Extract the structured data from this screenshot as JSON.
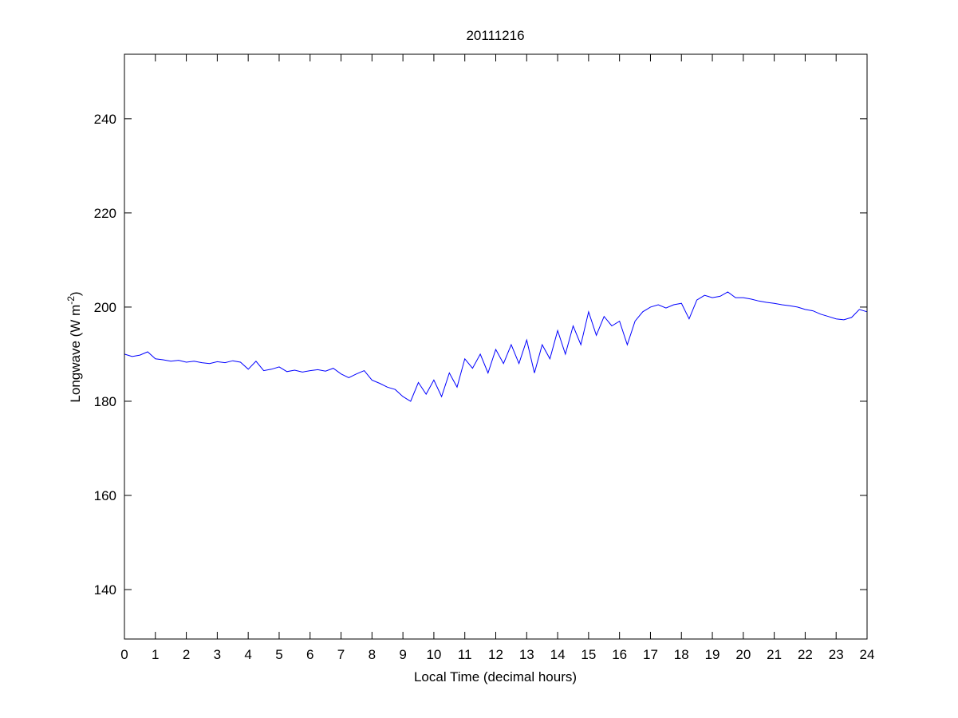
{
  "chart_data": {
    "type": "line",
    "title": "20111216",
    "xlabel": "Local Time (decimal hours)",
    "ylabel": {
      "main": "Longwave (W m",
      "sup": "-2",
      "end": ")"
    },
    "xlim": [
      0,
      24
    ],
    "ylim": [
      129.5,
      253.7
    ],
    "xticks": [
      0,
      1,
      2,
      3,
      4,
      5,
      6,
      7,
      8,
      9,
      10,
      11,
      12,
      13,
      14,
      15,
      16,
      17,
      18,
      19,
      20,
      21,
      22,
      23,
      24
    ],
    "yticks": [
      140,
      160,
      180,
      200,
      220,
      240
    ],
    "grid": false,
    "series": [
      {
        "name": "Longwave",
        "color": "#0000ff",
        "x": [
          0,
          0.25,
          0.5,
          0.75,
          1,
          1.25,
          1.5,
          1.75,
          2,
          2.25,
          2.5,
          2.75,
          3,
          3.25,
          3.5,
          3.75,
          4,
          4.25,
          4.5,
          4.75,
          5,
          5.25,
          5.5,
          5.75,
          6,
          6.25,
          6.5,
          6.75,
          7,
          7.25,
          7.5,
          7.75,
          8,
          8.25,
          8.5,
          8.75,
          9,
          9.25,
          9.5,
          9.75,
          10,
          10.25,
          10.5,
          10.75,
          11,
          11.25,
          11.5,
          11.75,
          12,
          12.25,
          12.5,
          12.75,
          13,
          13.25,
          13.5,
          13.75,
          14,
          14.25,
          14.5,
          14.75,
          15,
          15.25,
          15.5,
          15.75,
          16,
          16.25,
          16.5,
          16.75,
          17,
          17.25,
          17.5,
          17.75,
          18,
          18.25,
          18.5,
          18.75,
          19,
          19.25,
          19.5,
          19.75,
          20,
          20.25,
          20.5,
          20.75,
          21,
          21.25,
          21.5,
          21.75,
          22,
          22.25,
          22.5,
          22.75,
          23,
          23.25,
          23.5,
          23.75,
          24
        ],
        "y": [
          190,
          189.5,
          189.8,
          190.5,
          189,
          188.8,
          188.5,
          188.7,
          188.3,
          188.5,
          188.2,
          188,
          188.4,
          188.2,
          188.6,
          188.3,
          186.8,
          188.5,
          186.5,
          186.8,
          187.3,
          186.3,
          186.6,
          186.2,
          186.5,
          186.7,
          186.4,
          187,
          185.8,
          185,
          185.8,
          186.5,
          184.5,
          183.8,
          183,
          182.5,
          181,
          180,
          184,
          181.5,
          184.5,
          181,
          186,
          183,
          189,
          187,
          190,
          186,
          191,
          188,
          192,
          188,
          193,
          186,
          192,
          189,
          195,
          190,
          196,
          192,
          199,
          194,
          198,
          196,
          197,
          192,
          197,
          199,
          200,
          200.5,
          199.8,
          200.5,
          200.8,
          197.5,
          201.5,
          202.5,
          202,
          202.3,
          203.2,
          202,
          202,
          201.7,
          201.3,
          201,
          200.8,
          200.5,
          200.3,
          200,
          199.5,
          199.2,
          198.5,
          198,
          197.5,
          197.3,
          197.8,
          199.5,
          199
        ]
      }
    ]
  }
}
